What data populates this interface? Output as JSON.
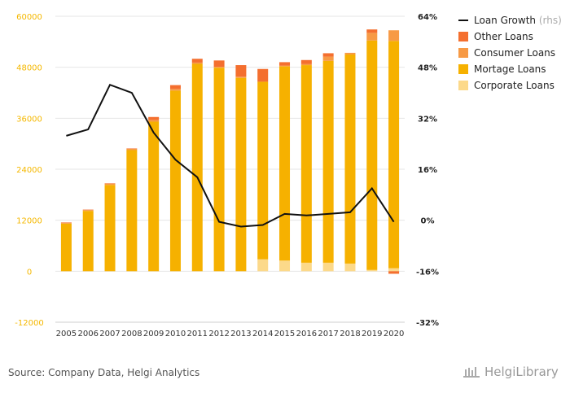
{
  "chart_data": {
    "type": "bar",
    "stacked": true,
    "categories": [
      "2005",
      "2006",
      "2007",
      "2008",
      "2009",
      "2010",
      "2011",
      "2012",
      "2013",
      "2014",
      "2015",
      "2016",
      "2017",
      "2018",
      "2019",
      "2020"
    ],
    "series": [
      {
        "name": "Corporate Loans",
        "color": "#fcd98a",
        "values": [
          0,
          0,
          0,
          0,
          0,
          0,
          0,
          0,
          0,
          2800,
          2500,
          2000,
          2000,
          1800,
          300,
          700
        ]
      },
      {
        "name": "Mortage Loans",
        "color": "#f6b100",
        "values": [
          11200,
          14200,
          20300,
          28500,
          35200,
          42500,
          48800,
          47900,
          45500,
          41800,
          45700,
          46500,
          47500,
          49200,
          54000,
          53500
        ]
      },
      {
        "name": "Consumer Loans",
        "color": "#f79a45",
        "values": [
          200,
          200,
          300,
          300,
          400,
          400,
          300,
          200,
          300,
          0,
          200,
          300,
          1000,
          400,
          1800,
          2500
        ]
      },
      {
        "name": "Other Loans",
        "color": "#f46f2f",
        "values": [
          100,
          100,
          100,
          100,
          700,
          900,
          900,
          1500,
          2700,
          3000,
          800,
          900,
          800,
          0,
          800,
          -600
        ]
      }
    ],
    "line_series": {
      "name": "Loan Growth",
      "note": "(rhs)",
      "axis": "right",
      "color": "#111111",
      "values": [
        26.5,
        28.5,
        42.5,
        40,
        27.5,
        19,
        13.5,
        -0.5,
        -2,
        -1.5,
        2,
        1.5,
        2,
        2.5,
        10,
        -0.5
      ]
    },
    "y_left": {
      "ticks": [
        -12000,
        0,
        12000,
        24000,
        36000,
        48000,
        60000
      ],
      "labels": [
        "-12000",
        "0",
        "12000",
        "24000",
        "36000",
        "48000",
        "60000"
      ],
      "min": -12000,
      "max": 60000
    },
    "y_right": {
      "ticks": [
        -32,
        -16,
        0,
        16,
        32,
        48,
        64
      ],
      "labels": [
        "-32%",
        "-16%",
        "0%",
        "16%",
        "32%",
        "48%",
        "64%"
      ],
      "min": -32,
      "max": 64
    },
    "legend_position": "top-right",
    "grid": true
  },
  "footer": {
    "source": "Source: Company Data, Helgi Analytics",
    "brand": "HelgiLibrary"
  }
}
